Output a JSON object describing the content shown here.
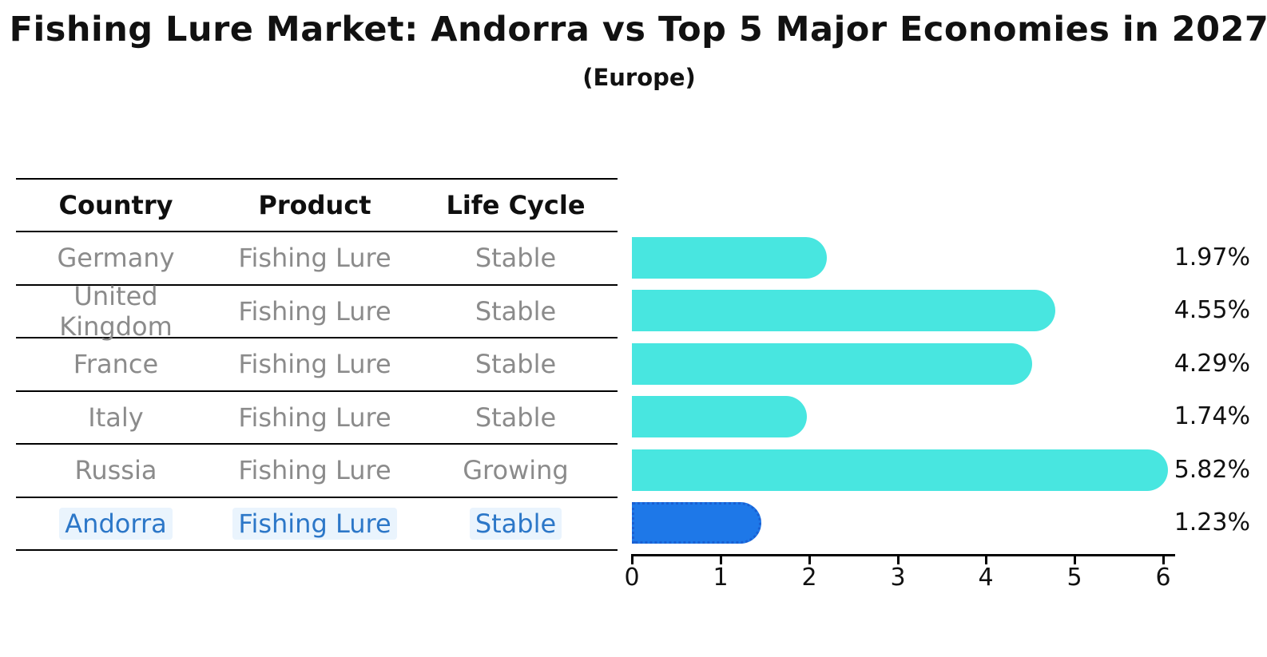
{
  "title": "Fishing Lure Market: Andorra vs Top 5 Major Economies in 2027",
  "subtitle": "(Europe)",
  "table": {
    "headers": [
      "Country",
      "Product",
      "Life Cycle"
    ],
    "rows": [
      {
        "country": "Germany",
        "product": "Fishing Lure",
        "life_cycle": "Stable",
        "highlight": false
      },
      {
        "country": "United Kingdom",
        "product": "Fishing Lure",
        "life_cycle": "Stable",
        "highlight": false
      },
      {
        "country": "France",
        "product": "Fishing Lure",
        "life_cycle": "Stable",
        "highlight": false
      },
      {
        "country": "Italy",
        "product": "Fishing Lure",
        "life_cycle": "Stable",
        "highlight": false
      },
      {
        "country": "Russia",
        "product": "Fishing Lure",
        "life_cycle": "Growing",
        "highlight": false
      },
      {
        "country": "Andorra",
        "product": "Fishing Lure",
        "life_cycle": "Stable",
        "highlight": true
      }
    ]
  },
  "chart_data": {
    "type": "bar",
    "orientation": "horizontal",
    "title": "Fishing Lure Market: Andorra vs Top 5 Major Economies in 2027 (Europe)",
    "categories": [
      "Germany",
      "United Kingdom",
      "France",
      "Italy",
      "Russia",
      "Andorra"
    ],
    "values": [
      1.97,
      4.55,
      4.29,
      1.74,
      5.82,
      1.23
    ],
    "value_labels": [
      "1.97%",
      "4.55%",
      "4.29%",
      "1.74%",
      "5.82%",
      "1.23%"
    ],
    "xlabel": "",
    "ylabel": "",
    "xlim": [
      0,
      6
    ],
    "xticks": [
      0,
      1,
      2,
      3,
      4,
      5,
      6
    ],
    "grid": false,
    "legend": false,
    "highlight_index": 5,
    "bar_color": "#48e6e0",
    "highlight_bar_color": "#1e78e8",
    "highlight_border_color": "#1a5fd2"
  },
  "colors": {
    "background": "#ffffff",
    "table_line": "#000000",
    "header_text": "#0f0f0f",
    "row_text": "#8b8b8b",
    "highlight_text": "#2c77c8",
    "value_label_text": "#111111"
  }
}
